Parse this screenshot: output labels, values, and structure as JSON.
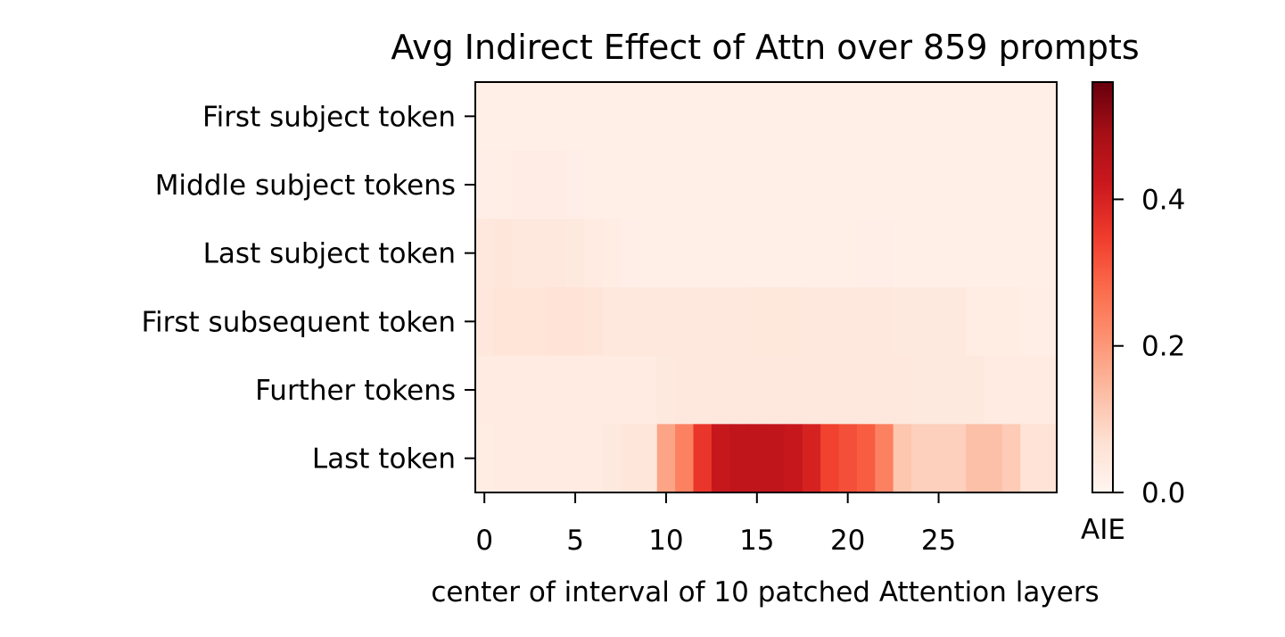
{
  "chart_data": {
    "type": "heatmap",
    "title": "Avg Indirect Effect of Attn over 859 prompts",
    "xlabel": "center of interval of 10 patched Attention layers",
    "ylabel": "",
    "x_ticks": [
      0,
      5,
      10,
      15,
      20,
      25
    ],
    "xlim": [
      -0.5,
      31.5
    ],
    "categories": [
      "First subject token",
      "Middle subject tokens",
      "Last subject token",
      "First subsequent token",
      "Further tokens",
      "Last token"
    ],
    "x": [
      0,
      1,
      2,
      3,
      4,
      5,
      6,
      7,
      8,
      9,
      10,
      11,
      12,
      13,
      14,
      15,
      16,
      17,
      18,
      19,
      20,
      21,
      22,
      23,
      24,
      25,
      26,
      27,
      28,
      29,
      30,
      31
    ],
    "values": [
      [
        0.02,
        0.02,
        0.02,
        0.02,
        0.02,
        0.02,
        0.02,
        0.02,
        0.02,
        0.02,
        0.02,
        0.02,
        0.02,
        0.02,
        0.02,
        0.02,
        0.02,
        0.02,
        0.02,
        0.02,
        0.02,
        0.02,
        0.02,
        0.02,
        0.02,
        0.02,
        0.02,
        0.02,
        0.02,
        0.02,
        0.02,
        0.02
      ],
      [
        0.022,
        0.024,
        0.026,
        0.026,
        0.026,
        0.022,
        0.02,
        0.02,
        0.02,
        0.02,
        0.02,
        0.02,
        0.02,
        0.02,
        0.02,
        0.02,
        0.02,
        0.02,
        0.02,
        0.02,
        0.02,
        0.02,
        0.02,
        0.02,
        0.02,
        0.02,
        0.02,
        0.02,
        0.02,
        0.02,
        0.02,
        0.02
      ],
      [
        0.045,
        0.05,
        0.045,
        0.045,
        0.042,
        0.04,
        0.035,
        0.03,
        0.022,
        0.02,
        0.02,
        0.02,
        0.02,
        0.02,
        0.02,
        0.02,
        0.02,
        0.02,
        0.02,
        0.02,
        0.02,
        0.022,
        0.022,
        0.02,
        0.02,
        0.02,
        0.02,
        0.02,
        0.02,
        0.02,
        0.02,
        0.02
      ],
      [
        0.045,
        0.055,
        0.055,
        0.055,
        0.06,
        0.06,
        0.055,
        0.045,
        0.045,
        0.045,
        0.045,
        0.045,
        0.045,
        0.045,
        0.045,
        0.048,
        0.048,
        0.048,
        0.045,
        0.045,
        0.045,
        0.045,
        0.045,
        0.04,
        0.04,
        0.04,
        0.04,
        0.03,
        0.03,
        0.03,
        0.025,
        0.025
      ],
      [
        0.035,
        0.035,
        0.035,
        0.035,
        0.035,
        0.035,
        0.035,
        0.035,
        0.035,
        0.035,
        0.04,
        0.045,
        0.045,
        0.045,
        0.045,
        0.045,
        0.045,
        0.045,
        0.045,
        0.045,
        0.045,
        0.045,
        0.045,
        0.045,
        0.04,
        0.04,
        0.04,
        0.04,
        0.035,
        0.035,
        0.035,
        0.035
      ],
      [
        0.03,
        0.035,
        0.035,
        0.035,
        0.035,
        0.035,
        0.035,
        0.04,
        0.05,
        0.05,
        0.18,
        0.24,
        0.36,
        0.43,
        0.44,
        0.44,
        0.44,
        0.43,
        0.4,
        0.34,
        0.32,
        0.3,
        0.24,
        0.12,
        0.1,
        0.1,
        0.1,
        0.13,
        0.13,
        0.11,
        0.06,
        0.06
      ]
    ],
    "vmin": 0.0,
    "vmax": 0.56,
    "colormap": "Reds",
    "colorbar": {
      "label": "AIE",
      "ticks": [
        0.0,
        0.2,
        0.4
      ],
      "tick_labels": [
        "0.0",
        "0.2",
        "0.4"
      ]
    },
    "grid": false,
    "legend": "none"
  }
}
